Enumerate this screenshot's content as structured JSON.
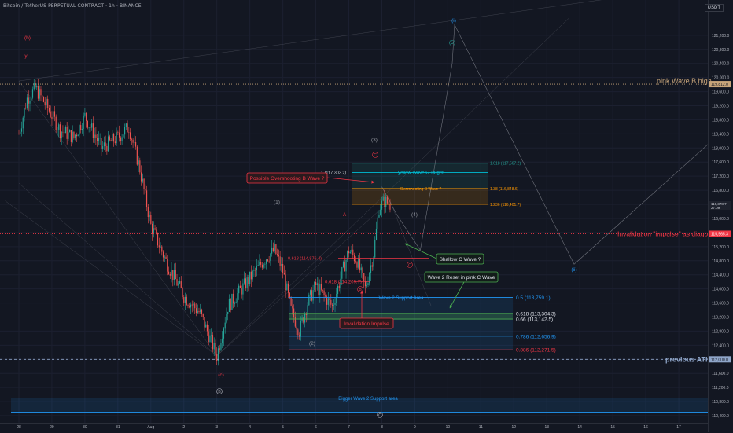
{
  "header": {
    "symbol": "Bitcoin / TetherUS PERPETUAL CONTRACT · 1h · BINANCE",
    "currency": "USDT"
  },
  "chart_data": {
    "type": "candlestick",
    "ylim": [
      110200,
      122200
    ],
    "y_ticks": [
      "110,400.0",
      "110,800.0",
      "111,200.0",
      "111,600.0",
      "112,000.0",
      "112,400.0",
      "112,800.0",
      "113,200.0",
      "113,600.0",
      "114,000.0",
      "114,400.0",
      "114,800.0",
      "115,200.0",
      "115,600.0",
      "116,000.0",
      "116,400.0",
      "116,800.0",
      "117,200.0",
      "117,600.0",
      "118,000.0",
      "118,400.0",
      "118,800.0",
      "119,200.0",
      "119,600.0",
      "120,000.0",
      "120,400.0",
      "120,800.0",
      "121,200.0"
    ],
    "x_ticks": [
      {
        "label": "28",
        "idx": 0
      },
      {
        "label": "29",
        "idx": 24
      },
      {
        "label": "30",
        "idx": 48
      },
      {
        "label": "31",
        "idx": 72
      },
      {
        "label": "Aug",
        "idx": 96
      },
      {
        "label": "2",
        "idx": 120
      },
      {
        "label": "3",
        "idx": 144
      },
      {
        "label": "4",
        "idx": 168
      },
      {
        "label": "5",
        "idx": 192
      },
      {
        "label": "6",
        "idx": 216
      },
      {
        "label": "7",
        "idx": 240
      },
      {
        "label": "8",
        "idx": 264
      },
      {
        "label": "9",
        "idx": 288
      },
      {
        "label": "10",
        "idx": 312
      },
      {
        "label": "11",
        "idx": 336
      },
      {
        "label": "12",
        "idx": 360
      },
      {
        "label": "13",
        "idx": 384
      },
      {
        "label": "14",
        "idx": 408
      },
      {
        "label": "15",
        "idx": 432
      },
      {
        "label": "16",
        "idx": 456
      },
      {
        "label": "17",
        "idx": 480
      }
    ],
    "price_anchors": [
      [
        0,
        118400
      ],
      [
        6,
        119400
      ],
      [
        12,
        119700
      ],
      [
        20,
        119200
      ],
      [
        30,
        118500
      ],
      [
        40,
        118300
      ],
      [
        48,
        118900
      ],
      [
        60,
        118000
      ],
      [
        72,
        118300
      ],
      [
        80,
        118600
      ],
      [
        88,
        117400
      ],
      [
        96,
        115800
      ],
      [
        108,
        114700
      ],
      [
        120,
        113800
      ],
      [
        132,
        113300
      ],
      [
        144,
        112100
      ],
      [
        152,
        113500
      ],
      [
        168,
        114300
      ],
      [
        180,
        114900
      ],
      [
        186,
        115100
      ],
      [
        192,
        114500
      ],
      [
        198,
        113400
      ],
      [
        204,
        112800
      ],
      [
        210,
        113600
      ],
      [
        216,
        114100
      ],
      [
        222,
        113800
      ],
      [
        228,
        113500
      ],
      [
        234,
        114300
      ],
      [
        240,
        115100
      ],
      [
        246,
        114800
      ],
      [
        252,
        114000
      ],
      [
        258,
        115000
      ],
      [
        262,
        116300
      ],
      [
        266,
        116500
      ],
      [
        270,
        116400
      ]
    ],
    "current_price": {
      "value": 116378.7,
      "label": "116,378.7",
      "sub": "27:09"
    },
    "other_price_label": {
      "value": 115565.3,
      "label": "115,565.3"
    },
    "levels": [
      {
        "id": "pink-b-high",
        "price": 119812,
        "label": "pink Wave B high",
        "axis_label": "119,812.0",
        "color": "#c8a57a",
        "style": "dotted"
      },
      {
        "id": "prev-ath",
        "price": 112000,
        "label": "previous ATH",
        "axis_label": "112,000.0",
        "color": "#8fa6c9",
        "style": "dashed"
      },
      {
        "id": "invalid-impulse",
        "price": 115565.3,
        "label": "Invalidation \"impulse\" as diagonal",
        "color": "#f23645",
        "style": "dotted"
      }
    ],
    "fib_top": [
      {
        "label": "1.618 (117,567.2)",
        "price": 117567.2,
        "color": "#26a69a"
      },
      {
        "label": "yellow Wave C Target",
        "price": 117303.2,
        "color": "#00bcd4",
        "label_pos": "mid"
      },
      {
        "label": "1.38 (116,848.6)",
        "price": 116848.6,
        "color": "#ff9800"
      },
      {
        "label": "Overshooting B Wave ?",
        "price": 116848.6,
        "color": "#ff9800",
        "label_pos": "mid"
      },
      {
        "label": "1.236 (116,401.7)",
        "price": 116401.7,
        "color": "#ff9800"
      }
    ],
    "fib_top_left_label": "1 (117,303.2)",
    "fib_bottom": [
      {
        "label": "0.5 (113,759.1)",
        "price": 113759.1,
        "color": "#2196f3"
      },
      {
        "label": "0.618 (113,304.3)",
        "price": 113304.3,
        "color": "#4caf50"
      },
      {
        "label": "0.66 (113,142.5)",
        "price": 113142.5,
        "color": "#4caf50"
      },
      {
        "label": "0.786 (112,656.9)",
        "price": 112656.9,
        "color": "#2196f3"
      },
      {
        "label": "0.886 (112,271.5)",
        "price": 112271.5,
        "color": "#f23645"
      }
    ],
    "wave2_support_label": "Wave 2 Support Area",
    "small_fibs": [
      {
        "label": "0.618 (114,876.4)",
        "price": 114876.4,
        "color": "#f23645"
      },
      {
        "label": "0.618 (114,209.7)",
        "price": 114209.7,
        "color": "#f23645"
      }
    ],
    "bigger_support_label": "Bigger Wave 2 Support area",
    "bigger_support": [
      110500,
      110900
    ],
    "callouts": [
      {
        "id": "possible-overshoot",
        "text": "Possible Overshooting B  Wave ?",
        "kind": "red"
      },
      {
        "id": "shallow-c",
        "text": "Shallow C Wave ?",
        "kind": "green"
      },
      {
        "id": "wave2-reset",
        "text": "Wave 2 Reset in pink C Wave",
        "kind": "green"
      },
      {
        "id": "invalidation-impulse",
        "text": "Invalidation Impulse",
        "kind": "red"
      }
    ],
    "wave_labels": [
      {
        "text": "(b)",
        "color": "#f23645"
      },
      {
        "text": "y",
        "color": "#f23645"
      },
      {
        "text": "(c)",
        "color": "#f23645"
      },
      {
        "text": "B",
        "color": "#b2b5be"
      },
      {
        "text": "(1)",
        "color": "#9598a1"
      },
      {
        "text": "(2)",
        "color": "#9598a1"
      },
      {
        "text": "A",
        "color": "#f23645"
      },
      {
        "text": "B",
        "color": "#f23645"
      },
      {
        "text": "(3)",
        "color": "#9598a1"
      },
      {
        "text": "C",
        "color": "#f23645"
      },
      {
        "text": "C",
        "color": "#f23645"
      },
      {
        "text": "(4)",
        "color": "#9598a1"
      },
      {
        "text": "(5)",
        "color": "#26a69a"
      },
      {
        "text": "(i)",
        "color": "#2196f3"
      },
      {
        "text": "(ii)",
        "color": "#2196f3"
      },
      {
        "text": "C",
        "color": "#b2b5be"
      }
    ]
  }
}
